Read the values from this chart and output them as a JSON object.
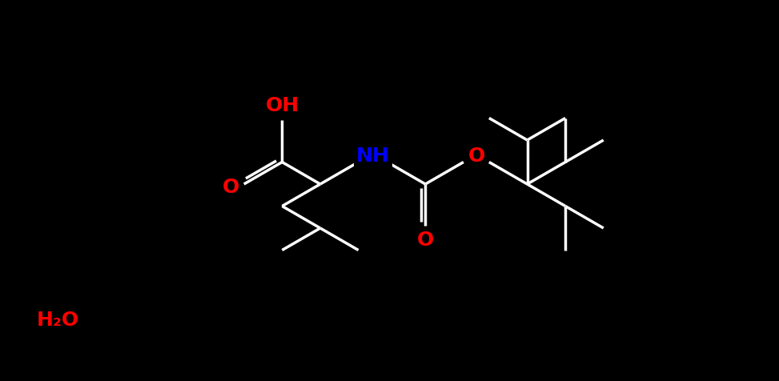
{
  "background": "#000000",
  "bond_color": "#ffffff",
  "O_color": "#ff0000",
  "N_color": "#0000ff",
  "C_color": "#ffffff",
  "figsize": [
    9.73,
    4.76
  ],
  "dpi": 100,
  "H2O_label": "H₂O",
  "OH_label": "OH",
  "NH_label": "NH",
  "O_label": "O",
  "font_size": 17
}
